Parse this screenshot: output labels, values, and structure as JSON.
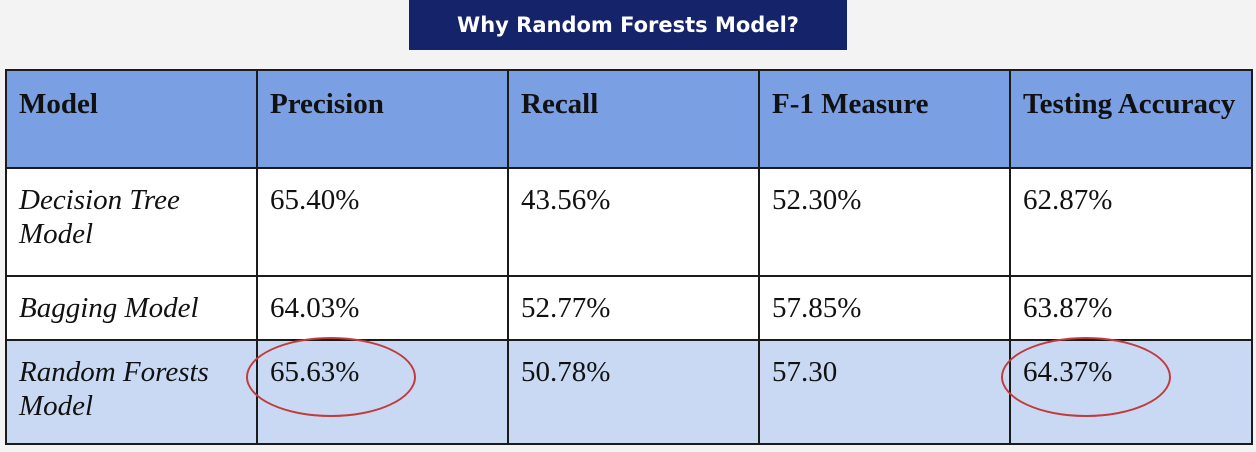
{
  "title": "Why Random Forests Model?",
  "table": {
    "headers": [
      "Model",
      "Precision",
      "Recall",
      "F-1 Measure",
      "Testing Accuracy"
    ],
    "rows": [
      [
        "Decision Tree Model",
        "65.40%",
        "43.56%",
        "52.30%",
        "62.87%"
      ],
      [
        "Bagging Model",
        "64.03%",
        "52.77%",
        "57.85%",
        "63.87%"
      ],
      [
        "Random Forests Model",
        "65.63%",
        "50.78%",
        "57.30",
        "64.37%"
      ]
    ],
    "highlighted_cells": [
      "Random Forests Model / Precision",
      "Random Forests Model / Testing Accuracy"
    ]
  },
  "colors": {
    "title_background": "#15236b",
    "header_background": "#7b9fe3",
    "highlight_row_background": "#c9d9f3",
    "circle_annotation": "#c23b3b"
  }
}
